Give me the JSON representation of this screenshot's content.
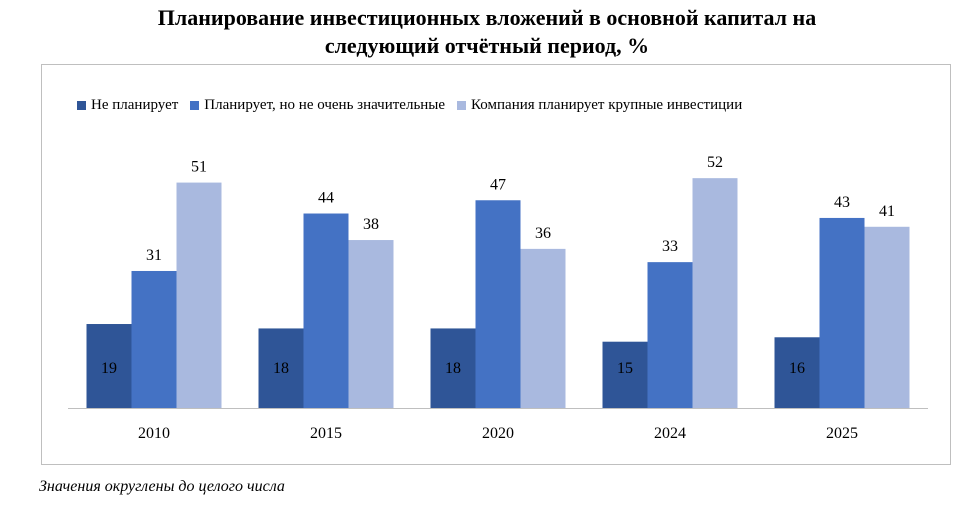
{
  "chart_data": {
    "type": "bar",
    "title_lines": [
      "Планирование инвестиционных вложений в основной капитал на",
      "следующий отчётный период, %"
    ],
    "categories": [
      "2010",
      "2015",
      "2020",
      "2024",
      "2025"
    ],
    "series": [
      {
        "name": "Не планирует",
        "color": "#2f5597",
        "values": [
          19,
          18,
          18,
          15,
          16
        ]
      },
      {
        "name": "Планирует, но не очень значительные",
        "color": "#4472c4",
        "values": [
          31,
          44,
          47,
          33,
          43
        ]
      },
      {
        "name": "Компания планирует крупные инвестиции",
        "color": "#a9b9df",
        "values": [
          51,
          38,
          36,
          52,
          41
        ]
      }
    ],
    "ylim": [
      0,
      56
    ],
    "grid": false,
    "legend_position": "top",
    "xlabel": "",
    "ylabel": ""
  },
  "footnote": "Значения округлены до целого числа"
}
